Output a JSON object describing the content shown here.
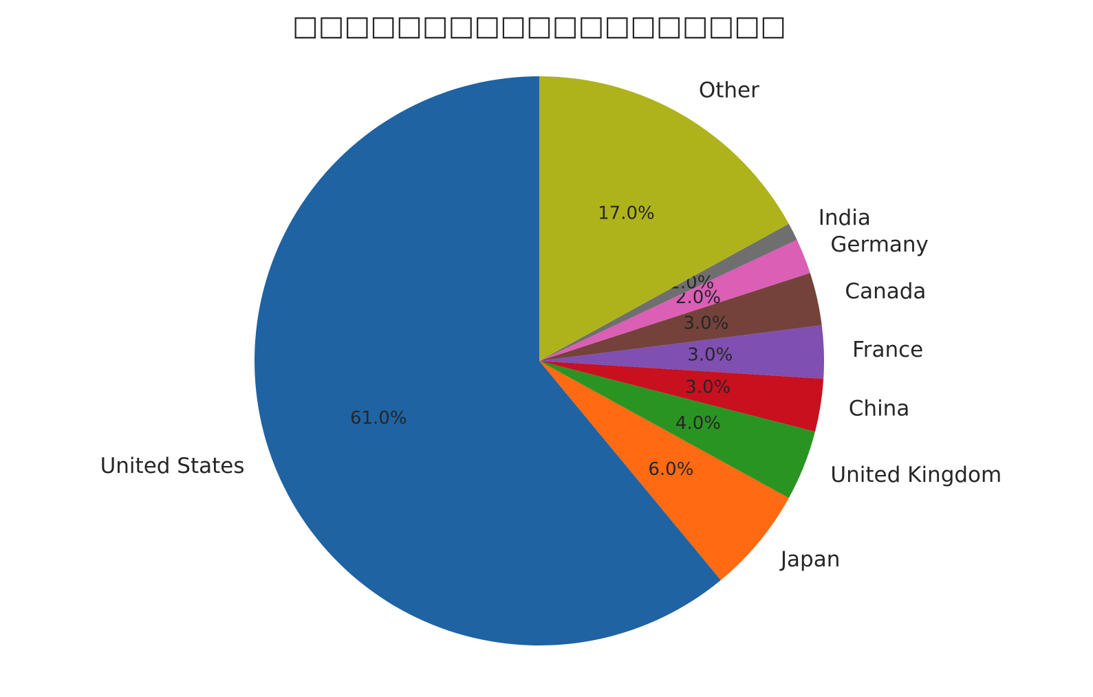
{
  "chart_data": {
    "type": "pie",
    "title": "□□□□□□□□□□□□□□□□□□□",
    "categories": [
      "United States",
      "Japan",
      "United Kingdom",
      "China",
      "France",
      "Canada",
      "Germany",
      "India",
      "Other"
    ],
    "values": [
      61,
      6,
      4,
      3,
      3,
      3,
      2,
      1,
      17
    ],
    "value_labels": [
      "61.0%",
      "6.0%",
      "4.0%",
      "3.0%",
      "3.0%",
      "3.0%",
      "2.0%",
      "1.0%",
      "17.0%"
    ],
    "colors": [
      "#1f63a3",
      "#ff6a13",
      "#2a9423",
      "#c8101f",
      "#7f4fb1",
      "#74423a",
      "#da5fb5",
      "#6f6f6f",
      "#aeb31c"
    ],
    "start_angle": 90,
    "counterclockwise": true
  }
}
